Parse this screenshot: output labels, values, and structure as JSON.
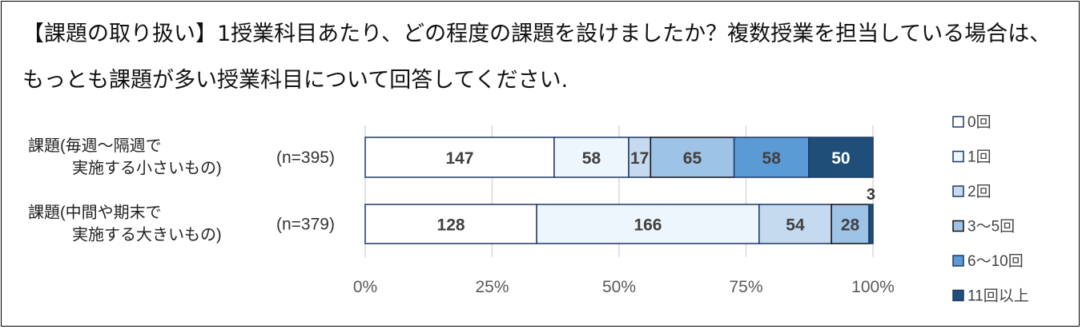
{
  "chart_data": {
    "type": "bar",
    "orientation": "horizontal",
    "stacked": "percent",
    "title": "【課題の取り扱い】1授業科目あたり、どの程度の課題を設けましたか？複数授業を担当している場合は、もっとも課題が多い授業科目について回答してください.",
    "categories": [
      {
        "line1": "課題(毎週～隔週で",
        "line2": "実施する小さいもの)",
        "n": "(n=395)"
      },
      {
        "line1": "課題(中間や期末で",
        "line2": "実施する大きいもの)",
        "n": "(n=379)"
      }
    ],
    "series": [
      {
        "name": "0回",
        "color": "#ffffff",
        "values": [
          147,
          128
        ]
      },
      {
        "name": "1回",
        "color": "#eef6fd",
        "values": [
          58,
          166
        ]
      },
      {
        "name": "2回",
        "color": "#c5d9ef",
        "values": [
          17,
          54
        ]
      },
      {
        "name": "3～5回",
        "color": "#9dc3e6",
        "values": [
          65,
          28
        ]
      },
      {
        "name": "6～10回",
        "color": "#5b9bd5",
        "values": [
          58,
          0
        ]
      },
      {
        "name": "11回以上",
        "color": "#1f4e79",
        "values": [
          50,
          3
        ]
      }
    ],
    "xticks": [
      "0%",
      "25%",
      "50%",
      "75%",
      "100%"
    ],
    "xlim": [
      0,
      100
    ],
    "grid": true,
    "legend": "right"
  }
}
